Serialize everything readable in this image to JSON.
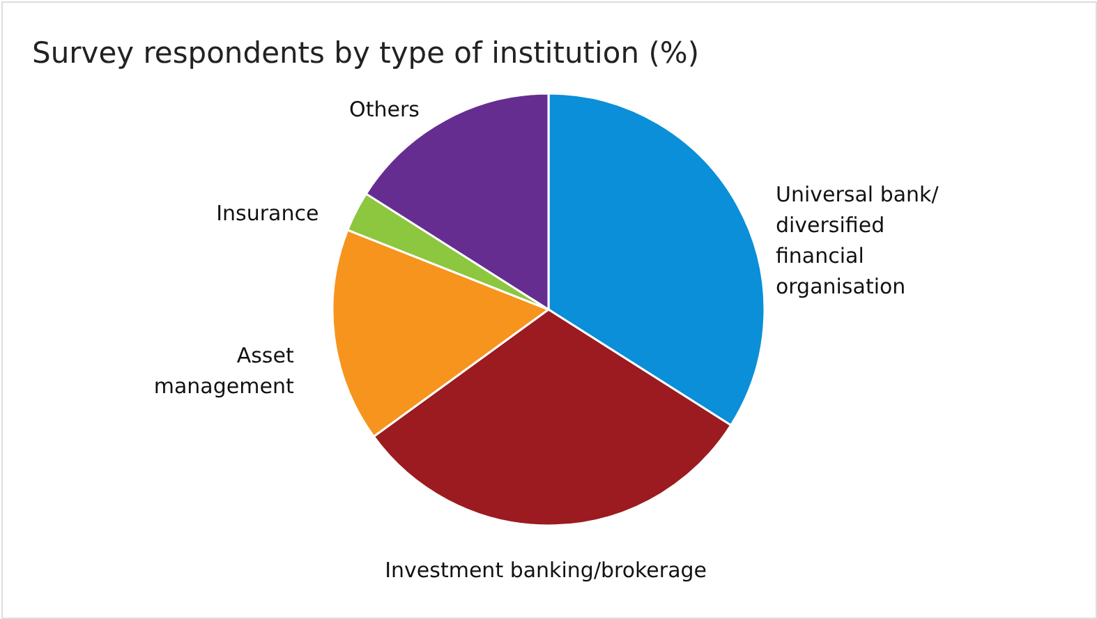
{
  "chart_data": {
    "type": "pie",
    "title": "Survey respondents by type of institution (%)",
    "categories": [
      "Universal bank/diversified financial organisation",
      "Investment banking/brokerage",
      "Asset management",
      "Insurance",
      "Others"
    ],
    "values": [
      34,
      31,
      16,
      3,
      16
    ],
    "colors": [
      "#0a8fd8",
      "#9b1b20",
      "#f7941d",
      "#8dc63f",
      "#662d91"
    ]
  }
}
